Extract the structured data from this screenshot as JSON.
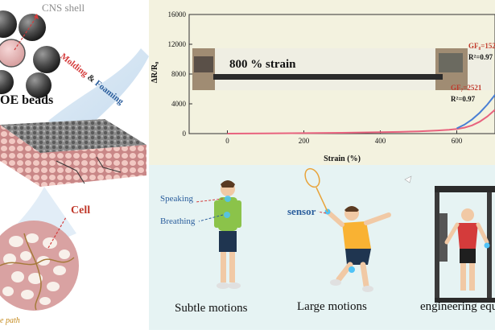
{
  "left_panel": {
    "cns_shell_label": "CNS shell",
    "beads_label": "OE beads",
    "process_word1": "Molding",
    "process_amp": "&",
    "process_word2": "Foaming",
    "cell_label": "Cell",
    "path_label": "e path"
  },
  "chart_data": {
    "type": "line",
    "ylabel": "ΔR/R₀",
    "xlabel": "Strain (%)",
    "xlim": [
      -100,
      700
    ],
    "ylim": [
      0,
      16000
    ],
    "xticks": [
      0,
      200,
      400,
      600
    ],
    "yticks": [
      0,
      4000,
      8000,
      12000,
      16000
    ],
    "inset_text": "800 % strain",
    "annotations": [
      {
        "gf": "GF₈=152",
        "r2": "R²=0.97"
      },
      {
        "gf": "GF₇=2521",
        "r2": "R²=0.97"
      }
    ],
    "series": [
      {
        "color": "#e8637e",
        "x": [
          0,
          100,
          200,
          300,
          400,
          450,
          500,
          550,
          580,
          600,
          620,
          640,
          660,
          680,
          700
        ],
        "y": [
          0,
          20,
          60,
          110,
          180,
          230,
          300,
          420,
          520,
          620,
          800,
          1100,
          1600,
          2300,
          3200
        ]
      }
    ],
    "series2": [
      {
        "color": "#4a7fd4",
        "x": [
          600,
          620,
          640,
          660,
          680,
          700
        ],
        "y": [
          700,
          1200,
          1900,
          2800,
          3900,
          5200
        ]
      }
    ]
  },
  "motions": {
    "subtle_title": "Subtle motions",
    "speaking": "Speaking",
    "breathing": "Breathing",
    "large_title": "Large motions",
    "sensor": "sensor",
    "engineering_title": "engineering equ"
  },
  "colors": {
    "chart_bg": "#f3f2df",
    "motions_bg": "#e6f3f3",
    "curve_pink": "#e8637e",
    "curve_blue": "#4a7fd4",
    "annotation_red": "#c0392b",
    "arrow_red": "#d43b3b",
    "label_blue": "#2a5d9c"
  }
}
